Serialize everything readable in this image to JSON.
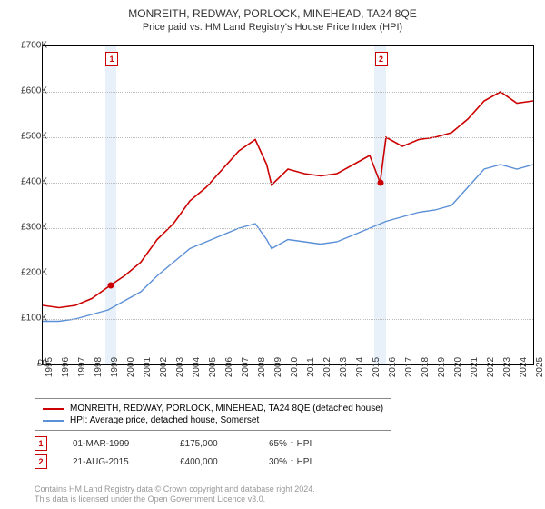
{
  "title": "MONREITH, REDWAY, PORLOCK, MINEHEAD, TA24 8QE",
  "subtitle": "Price paid vs. HM Land Registry's House Price Index (HPI)",
  "chart": {
    "type": "line",
    "background_color": "#ffffff",
    "grid_color": "#bbbbbb",
    "shade_color": "#d9e8f5",
    "ylim": [
      0,
      700000
    ],
    "ytick_step": 100000,
    "y_labels": [
      "£0",
      "£100K",
      "£200K",
      "£300K",
      "£400K",
      "£500K",
      "£600K",
      "£700K"
    ],
    "x_years": [
      1995,
      1996,
      1997,
      1998,
      1999,
      2000,
      2001,
      2002,
      2003,
      2004,
      2005,
      2006,
      2007,
      2008,
      2009,
      2010,
      2011,
      2012,
      2013,
      2014,
      2015,
      2016,
      2017,
      2018,
      2019,
      2020,
      2021,
      2022,
      2023,
      2024,
      2025
    ],
    "series": [
      {
        "name": "property",
        "label": "MONREITH, REDWAY, PORLOCK, MINEHEAD, TA24 8QE (detached house)",
        "color": "#cc0000",
        "line_width": 1.6,
        "data": [
          [
            1995,
            130000
          ],
          [
            1996,
            125000
          ],
          [
            1997,
            130000
          ],
          [
            1998,
            145000
          ],
          [
            1999.17,
            175000
          ],
          [
            2000,
            195000
          ],
          [
            2001,
            225000
          ],
          [
            2002,
            275000
          ],
          [
            2003,
            310000
          ],
          [
            2004,
            360000
          ],
          [
            2005,
            390000
          ],
          [
            2006,
            430000
          ],
          [
            2007,
            470000
          ],
          [
            2008,
            495000
          ],
          [
            2008.7,
            440000
          ],
          [
            2009,
            395000
          ],
          [
            2010,
            430000
          ],
          [
            2011,
            420000
          ],
          [
            2012,
            415000
          ],
          [
            2013,
            420000
          ],
          [
            2014,
            440000
          ],
          [
            2015,
            460000
          ],
          [
            2015.64,
            400000
          ],
          [
            2016,
            500000
          ],
          [
            2017,
            480000
          ],
          [
            2018,
            495000
          ],
          [
            2019,
            500000
          ],
          [
            2020,
            510000
          ],
          [
            2021,
            540000
          ],
          [
            2022,
            580000
          ],
          [
            2023,
            600000
          ],
          [
            2024,
            575000
          ],
          [
            2025,
            580000
          ]
        ]
      },
      {
        "name": "hpi",
        "label": "HPI: Average price, detached house, Somerset",
        "color": "#5b8fd6",
        "line_width": 1.4,
        "data": [
          [
            1995,
            95000
          ],
          [
            1996,
            95000
          ],
          [
            1997,
            100000
          ],
          [
            1998,
            110000
          ],
          [
            1999,
            120000
          ],
          [
            2000,
            140000
          ],
          [
            2001,
            160000
          ],
          [
            2002,
            195000
          ],
          [
            2003,
            225000
          ],
          [
            2004,
            255000
          ],
          [
            2005,
            270000
          ],
          [
            2006,
            285000
          ],
          [
            2007,
            300000
          ],
          [
            2008,
            310000
          ],
          [
            2008.7,
            275000
          ],
          [
            2009,
            255000
          ],
          [
            2010,
            275000
          ],
          [
            2011,
            270000
          ],
          [
            2012,
            265000
          ],
          [
            2013,
            270000
          ],
          [
            2014,
            285000
          ],
          [
            2015,
            300000
          ],
          [
            2016,
            315000
          ],
          [
            2017,
            325000
          ],
          [
            2018,
            335000
          ],
          [
            2019,
            340000
          ],
          [
            2020,
            350000
          ],
          [
            2021,
            390000
          ],
          [
            2022,
            430000
          ],
          [
            2023,
            440000
          ],
          [
            2024,
            430000
          ],
          [
            2025,
            440000
          ]
        ]
      }
    ],
    "sales": [
      {
        "marker": "1",
        "year": 1999.17,
        "price": 175000,
        "date": "01-MAR-1999",
        "price_label": "£175,000",
        "hpi_diff": "65% ↑ HPI",
        "shade_width_years": 0.7
      },
      {
        "marker": "2",
        "year": 2015.64,
        "price": 400000,
        "date": "21-AUG-2015",
        "price_label": "£400,000",
        "hpi_diff": "30% ↑ HPI",
        "shade_width_years": 0.7
      }
    ]
  },
  "footer": {
    "line1": "Contains HM Land Registry data © Crown copyright and database right 2024.",
    "line2": "This data is licensed under the Open Government Licence v3.0."
  }
}
